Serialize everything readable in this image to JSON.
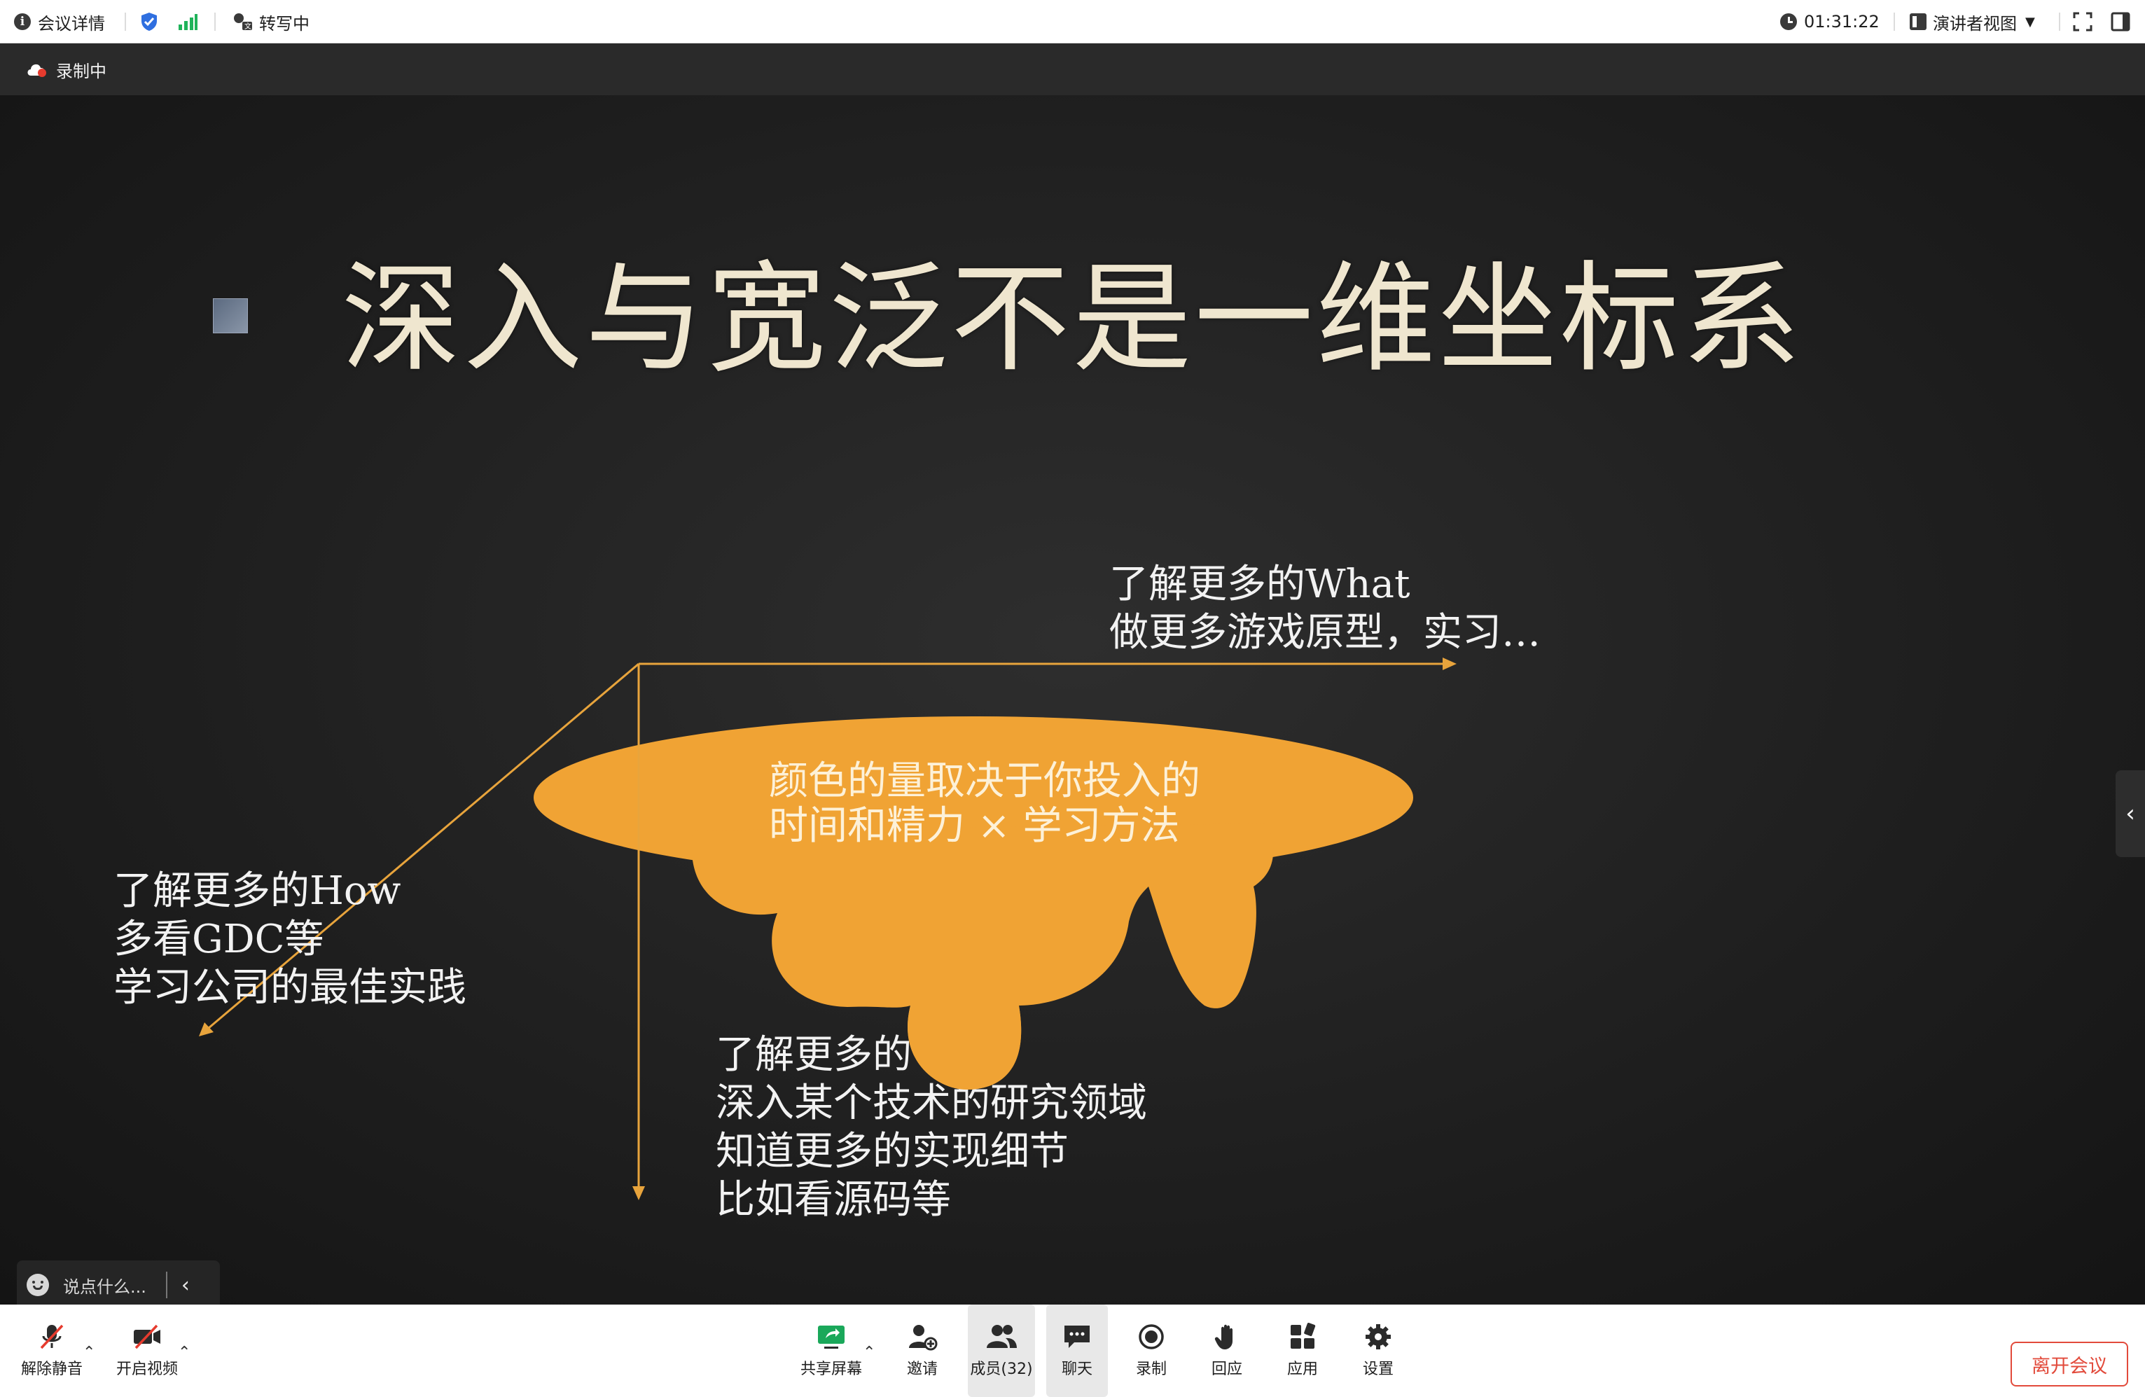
{
  "topbar": {
    "meeting_details": "会议详情",
    "transcribe": "转写中",
    "timer": "01:31:22",
    "view_mode": "演讲者视图"
  },
  "recording": {
    "label": "录制中"
  },
  "slide": {
    "title": "深入与宽泛不是一维坐标系",
    "what_line1": "了解更多的What",
    "what_line2": "做更多游戏原型，实习…",
    "how_line1": "了解更多的How",
    "how_line2": "多看GDC等",
    "how_line3": "学习公司的最佳实践",
    "why_line1": "了解更多的",
    "why_line2": "深入某个技术的研究领域",
    "why_line3": "知道更多的实现细节",
    "why_line4": "比如看源码等",
    "blob_line1": "颜色的量取决于你投入的",
    "blob_line2": "时间和精力 × 学习方法",
    "colors": {
      "blob": "#f0a334",
      "arrow": "#e8a43c",
      "title": "#efe6cf"
    }
  },
  "chat": {
    "placeholder": "说点什么..."
  },
  "toolbar": {
    "unmute": "解除静音",
    "start_video": "开启视频",
    "share_screen": "共享屏幕",
    "invite": "邀请",
    "members": "成员(32)",
    "chat": "聊天",
    "record": "录制",
    "react": "回应",
    "apps": "应用",
    "settings": "设置",
    "leave": "离开会议"
  }
}
